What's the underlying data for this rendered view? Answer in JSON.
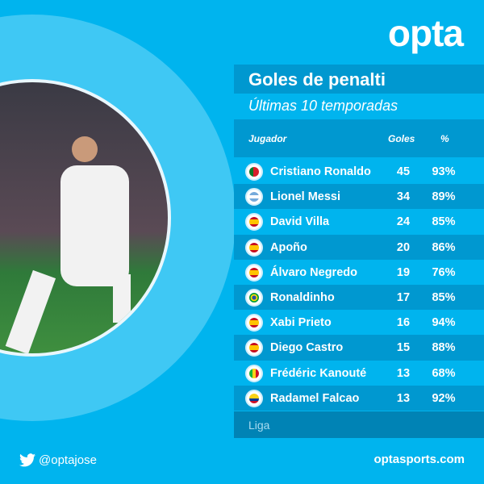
{
  "brand": {
    "logo": "opta",
    "website": "optasports.com",
    "twitter_handle": "@optajose"
  },
  "title": "Goles de penalti",
  "subtitle": "Últimas 10 temporadas",
  "columns": {
    "player": "Jugador",
    "goals": "Goles",
    "pct": "%"
  },
  "rows": [
    {
      "name": "Cristiano Ronaldo",
      "goals": "45",
      "pct": "93%",
      "flag": "portugal"
    },
    {
      "name": "Lionel Messi",
      "goals": "34",
      "pct": "89%",
      "flag": "argentina"
    },
    {
      "name": "David Villa",
      "goals": "24",
      "pct": "85%",
      "flag": "spain"
    },
    {
      "name": "Apoño",
      "goals": "20",
      "pct": "86%",
      "flag": "spain"
    },
    {
      "name": "Álvaro Negredo",
      "goals": "19",
      "pct": "76%",
      "flag": "spain"
    },
    {
      "name": "Ronaldinho",
      "goals": "17",
      "pct": "85%",
      "flag": "brazil"
    },
    {
      "name": "Xabi Prieto",
      "goals": "16",
      "pct": "94%",
      "flag": "spain"
    },
    {
      "name": "Diego Castro",
      "goals": "15",
      "pct": "88%",
      "flag": "spain"
    },
    {
      "name": "Frédéric Kanouté",
      "goals": "13",
      "pct": "68%",
      "flag": "mali"
    },
    {
      "name": "Radamel Falcao",
      "goals": "13",
      "pct": "92%",
      "flag": "colombia"
    }
  ],
  "footnote": "Liga",
  "colors": {
    "background": "#00b4ee",
    "band_dark": "#0098d0",
    "liga_band": "#0083b5"
  }
}
